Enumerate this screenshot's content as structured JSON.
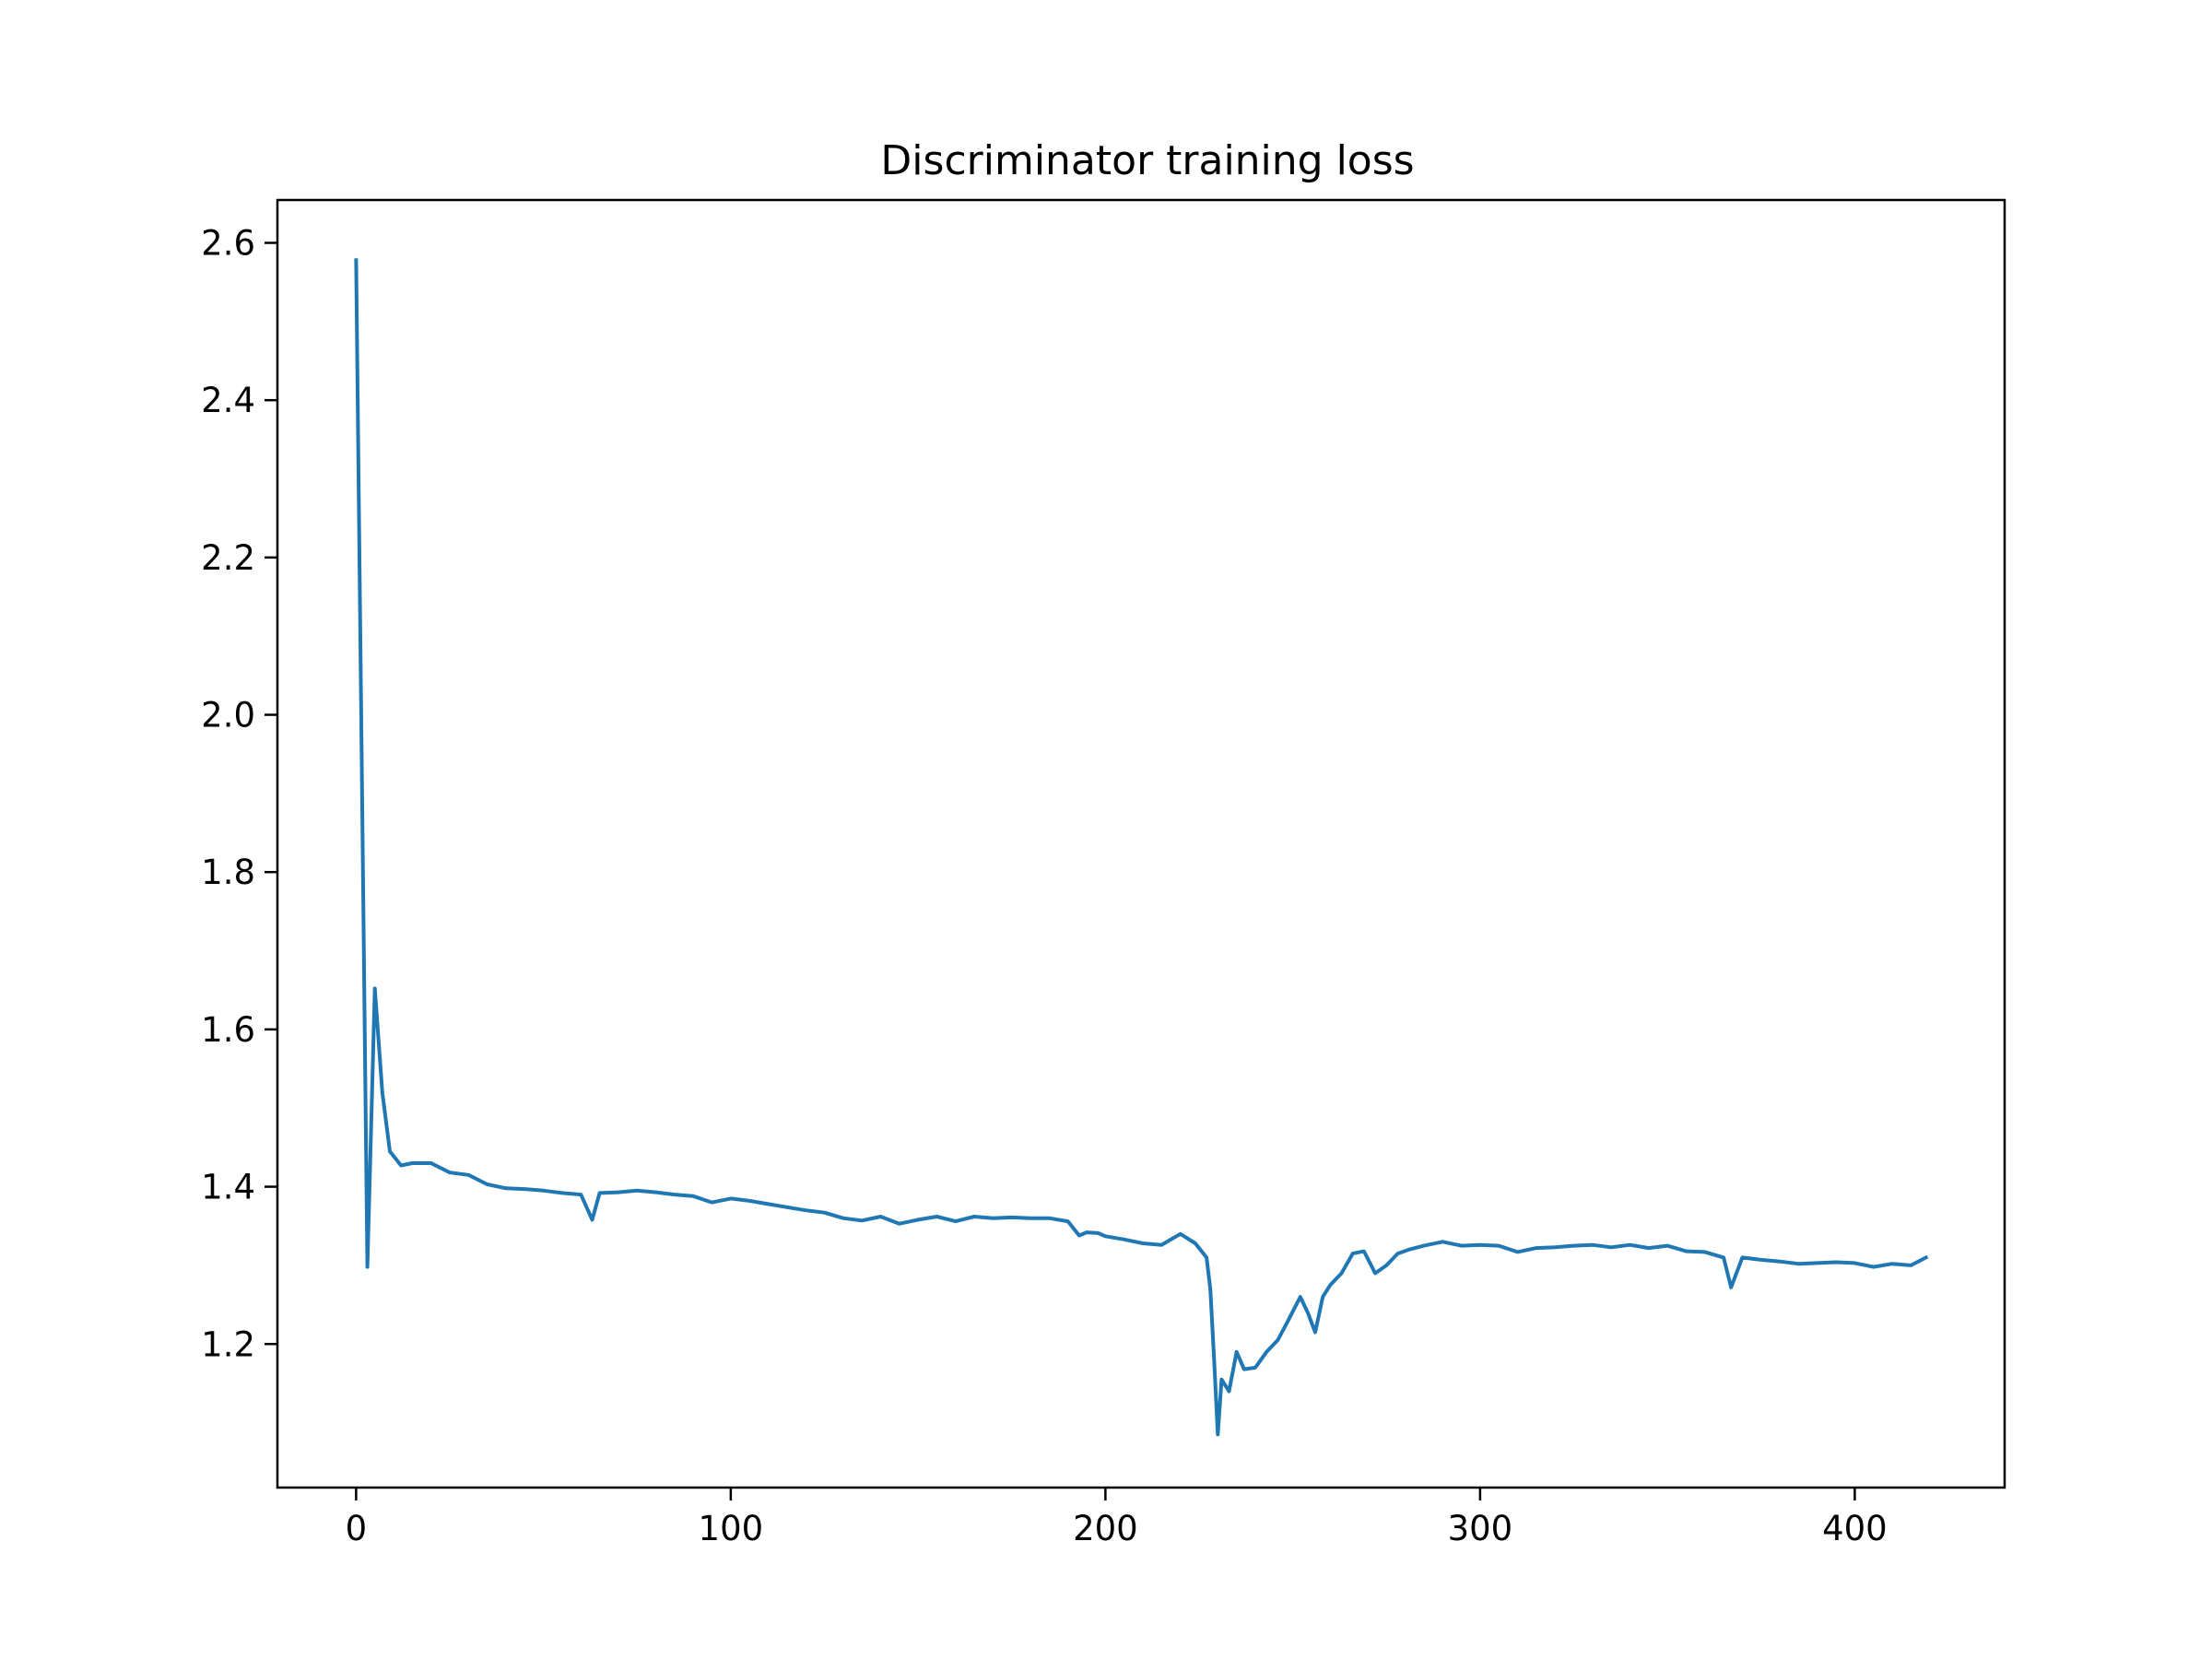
{
  "chart_data": {
    "type": "line",
    "title": "Discriminator training loss",
    "xlabel": "",
    "ylabel": "",
    "xlim": [
      -21,
      440
    ],
    "ylim": [
      1.0175,
      2.6545
    ],
    "grid": false,
    "legend": false,
    "line_color": "#1f77b4",
    "xticks": [
      0,
      100,
      200,
      300,
      400
    ],
    "yticks": [
      1.2,
      1.4,
      1.6,
      1.8,
      2.0,
      2.2,
      2.4,
      2.6
    ],
    "xtick_labels": [
      "0",
      "100",
      "200",
      "300",
      "400"
    ],
    "ytick_labels": [
      "1.2",
      "1.4",
      "1.6",
      "1.8",
      "2.0",
      "2.2",
      "2.4",
      "2.6"
    ],
    "series": [
      {
        "x": [
          0,
          3,
          5,
          7,
          9,
          12,
          15,
          20,
          25,
          30,
          35,
          40,
          45,
          50,
          55,
          60,
          63,
          65,
          70,
          75,
          80,
          85,
          90,
          95,
          100,
          105,
          110,
          115,
          120,
          125,
          130,
          135,
          140,
          145,
          150,
          155,
          160,
          165,
          170,
          175,
          180,
          185,
          190,
          193,
          195,
          198,
          200,
          205,
          210,
          215,
          220,
          224,
          227,
          228,
          229,
          230,
          231,
          233,
          235,
          237,
          240,
          243,
          246,
          249,
          252,
          254,
          256,
          258,
          260,
          263,
          266,
          269,
          272,
          275,
          278,
          281,
          285,
          290,
          295,
          300,
          305,
          310,
          315,
          320,
          325,
          330,
          335,
          340,
          345,
          350,
          355,
          360,
          365,
          367,
          370,
          375,
          380,
          385,
          390,
          395,
          400,
          405,
          410,
          415,
          419
        ],
        "y": [
          2.578,
          1.298,
          1.652,
          1.52,
          1.445,
          1.427,
          1.43,
          1.43,
          1.418,
          1.415,
          1.403,
          1.398,
          1.397,
          1.395,
          1.392,
          1.39,
          1.358,
          1.392,
          1.393,
          1.395,
          1.393,
          1.39,
          1.388,
          1.38,
          1.385,
          1.382,
          1.378,
          1.374,
          1.37,
          1.367,
          1.36,
          1.357,
          1.362,
          1.353,
          1.358,
          1.362,
          1.356,
          1.362,
          1.36,
          1.361,
          1.36,
          1.36,
          1.356,
          1.338,
          1.342,
          1.341,
          1.337,
          1.333,
          1.328,
          1.326,
          1.34,
          1.328,
          1.31,
          1.27,
          1.18,
          1.085,
          1.155,
          1.14,
          1.19,
          1.168,
          1.17,
          1.19,
          1.205,
          1.232,
          1.26,
          1.24,
          1.215,
          1.26,
          1.275,
          1.29,
          1.315,
          1.318,
          1.29,
          1.3,
          1.315,
          1.32,
          1.325,
          1.33,
          1.325,
          1.326,
          1.325,
          1.317,
          1.322,
          1.323,
          1.325,
          1.326,
          1.323,
          1.326,
          1.322,
          1.325,
          1.318,
          1.317,
          1.31,
          1.272,
          1.31,
          1.307,
          1.305,
          1.302,
          1.303,
          1.304,
          1.303,
          1.298,
          1.302,
          1.3,
          1.31
        ]
      }
    ]
  }
}
